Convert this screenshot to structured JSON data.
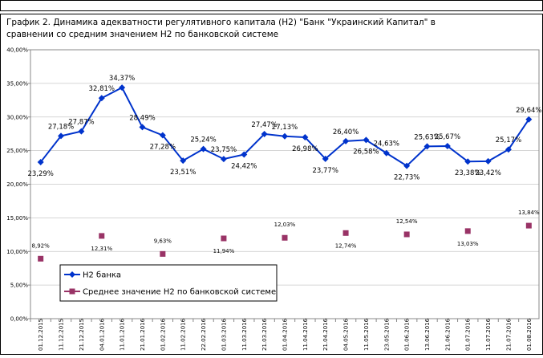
{
  "chart_data": {
    "type": "line",
    "title": [
      "График 2. Динамика адекватности регулятивного капитала (Н2) \"Банк \"Украинский Капитал\"  в",
      "сравнении со средним значением Н2 по банковской системе"
    ],
    "categories": [
      "01.12.2015",
      "11.12.2015",
      "21.12.2015",
      "04.01.2016",
      "11.01.2016",
      "21.01.2016",
      "01.02.2016",
      "11.02.2016",
      "22.02.2016",
      "01.03.2016",
      "11.03.2016",
      "21.03.2016",
      "01.04.2016",
      "11.04.2016",
      "21.04.2016",
      "04.05.2016",
      "11.05.2016",
      "23.05.2016",
      "01.06.2016",
      "13.06.2016",
      "21.06.2016",
      "01.07.2016",
      "11.07.2016",
      "21.07.2016",
      "01.08.2016"
    ],
    "series": [
      {
        "name": "Н2 банка",
        "color": "#0033cc",
        "marker": "diamond",
        "values": [
          23.29,
          27.18,
          27.87,
          32.81,
          34.37,
          28.49,
          27.28,
          23.51,
          25.24,
          23.75,
          24.42,
          27.47,
          27.13,
          26.98,
          23.77,
          26.4,
          26.58,
          24.63,
          22.73,
          25.63,
          25.67,
          23.38,
          23.42,
          25.17,
          29.64
        ],
        "value_labels": [
          "23,29%",
          "27,18%",
          "27,87%",
          "32,81%",
          "34,37%",
          "28,49%",
          "27,28%",
          "23,51%",
          "25,24%",
          "23,75%",
          "24,42%",
          "27,47%",
          "27,13%",
          "26,98%",
          "23,77%",
          "26,40%",
          "26,58%",
          "24,63%",
          "22,73%",
          "25,63%",
          "25,67%",
          "23,38%",
          "23,42%",
          "25,17%",
          "29,64%"
        ]
      },
      {
        "name": "Среднее значение Н2 по банковской системе",
        "color": "#993366",
        "marker": "square",
        "values": [
          8.92,
          null,
          null,
          12.31,
          null,
          null,
          9.63,
          null,
          null,
          11.94,
          null,
          null,
          12.03,
          null,
          null,
          12.74,
          null,
          null,
          12.54,
          null,
          null,
          13.03,
          null,
          null,
          13.84
        ],
        "value_labels": [
          "8,92%",
          null,
          null,
          "12,31%",
          null,
          null,
          "9,63%",
          null,
          null,
          "11,94%",
          null,
          null,
          "12,03%",
          null,
          null,
          "12,74%",
          null,
          null,
          "12,54%",
          null,
          null,
          "13,03%",
          null,
          null,
          "13,84%"
        ]
      }
    ],
    "ylim": [
      0,
      40
    ],
    "yticks": [
      {
        "value": 0,
        "label": "0,00%"
      },
      {
        "value": 5,
        "label": "5,00%"
      },
      {
        "value": 10,
        "label": "10,00%"
      },
      {
        "value": 15,
        "label": "15,00%"
      },
      {
        "value": 20,
        "label": "20,00%"
      },
      {
        "value": 25,
        "label": "25,00%"
      },
      {
        "value": 30,
        "label": "30,00%"
      },
      {
        "value": 35,
        "label": "35,00%"
      },
      {
        "value": 40,
        "label": "40,00%"
      }
    ],
    "grid": true
  }
}
